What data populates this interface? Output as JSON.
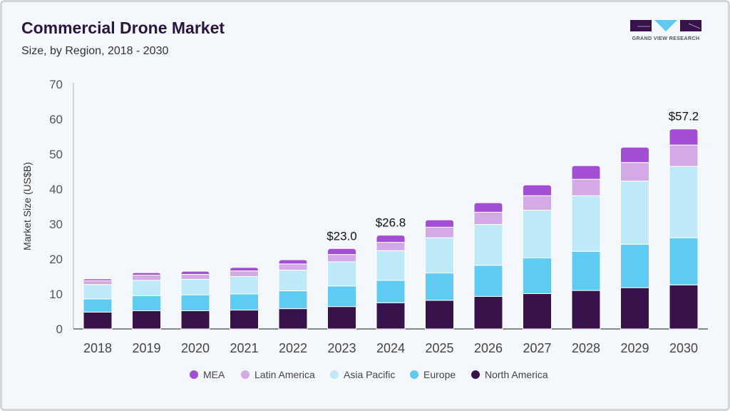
{
  "header": {
    "title": "Commercial Drone Market",
    "subtitle": "Size, by Region, 2018 - 2030",
    "logo_text": "GRAND VIEW RESEARCH"
  },
  "chart_data": {
    "type": "bar",
    "stacked": true,
    "categories": [
      "2018",
      "2019",
      "2020",
      "2021",
      "2022",
      "2023",
      "2024",
      "2025",
      "2026",
      "2027",
      "2028",
      "2029",
      "2030"
    ],
    "ylabel": "Market Size (US$B)",
    "xlabel": "",
    "ylim": [
      0,
      70
    ],
    "yticks": [
      0,
      10,
      20,
      30,
      40,
      50,
      60,
      70
    ],
    "grid": false,
    "legend_position": "bottom",
    "series": [
      {
        "name": "North America",
        "color": "#38124a",
        "values": [
          4.8,
          5.2,
          5.2,
          5.4,
          5.8,
          6.4,
          7.5,
          8.2,
          9.3,
          10.1,
          11.0,
          11.8,
          12.6
        ]
      },
      {
        "name": "Europe",
        "color": "#5dcbf2",
        "values": [
          3.8,
          4.3,
          4.5,
          4.6,
          5.1,
          5.9,
          6.4,
          7.8,
          8.9,
          10.2,
          11.2,
          12.4,
          13.5
        ]
      },
      {
        "name": "Asia Pacific",
        "color": "#bde9f9",
        "values": [
          4.1,
          4.4,
          4.5,
          5.0,
          5.9,
          6.9,
          8.5,
          10.1,
          11.7,
          13.7,
          15.9,
          18.1,
          20.4
        ]
      },
      {
        "name": "Latin America",
        "color": "#d3a9e8",
        "values": [
          1.1,
          1.5,
          1.4,
          1.6,
          1.8,
          2.1,
          2.4,
          3.0,
          3.5,
          4.1,
          4.7,
          5.3,
          6.1
        ]
      },
      {
        "name": "MEA",
        "color": "#a24fd6",
        "values": [
          0.5,
          0.7,
          0.9,
          1.0,
          1.2,
          1.7,
          2.0,
          2.1,
          2.7,
          3.1,
          3.9,
          4.4,
          4.6
        ]
      }
    ],
    "annotations": [
      {
        "category": "2023",
        "label": "$23.0"
      },
      {
        "category": "2024",
        "label": "$26.8"
      },
      {
        "category": "2030",
        "label": "$57.2"
      }
    ],
    "legend_order": [
      "MEA",
      "Latin America",
      "Asia Pacific",
      "Europe",
      "North America"
    ]
  }
}
